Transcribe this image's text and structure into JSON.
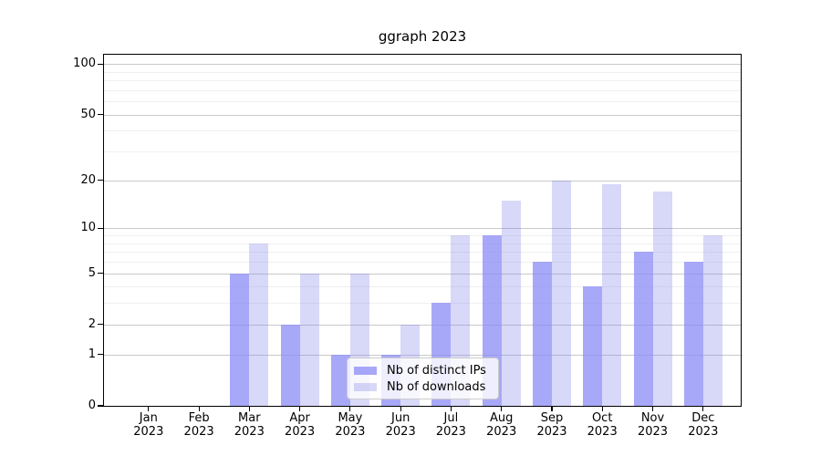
{
  "chart_data": {
    "type": "bar",
    "title": "ggraph 2023",
    "x": [
      "Jan",
      "Feb",
      "Mar",
      "Apr",
      "May",
      "Jun",
      "Jul",
      "Aug",
      "Sep",
      "Oct",
      "Nov",
      "Dec"
    ],
    "x_year": "2023",
    "series": [
      {
        "name": "Nb of distinct IPs",
        "values": [
          0,
          0,
          5,
          2,
          1,
          1,
          3,
          9,
          6,
          4,
          7,
          6
        ],
        "color": "#a8a8f8",
        "css_color": "rgba(139,139,246,0.75)"
      },
      {
        "name": "Nb of downloads",
        "values": [
          0,
          0,
          8,
          5,
          5,
          2,
          9,
          15,
          20,
          19,
          17,
          9
        ],
        "color": "#d8d8f8",
        "css_color": "rgba(125,125,232,0.3)"
      }
    ],
    "y_axis": {
      "scale": "log10(value+1)",
      "tick_values": [
        0,
        1,
        2,
        5,
        10,
        20,
        50,
        100
      ],
      "tick_labels": [
        "0",
        "1",
        "2",
        "5",
        "10",
        "20",
        "50",
        "100"
      ],
      "minor_gridline_values": [
        3,
        4,
        6,
        7,
        8,
        9,
        30,
        40,
        60,
        70,
        80,
        90
      ]
    },
    "ylim": [
      0,
      112
    ],
    "grid": true,
    "legend_position": "lower-center-inside",
    "colors": {
      "major_grid": "#c9c9c9",
      "minor_grid": "#efefef",
      "spine": "#000000",
      "background": "#ffffff",
      "text": "#000000"
    }
  }
}
